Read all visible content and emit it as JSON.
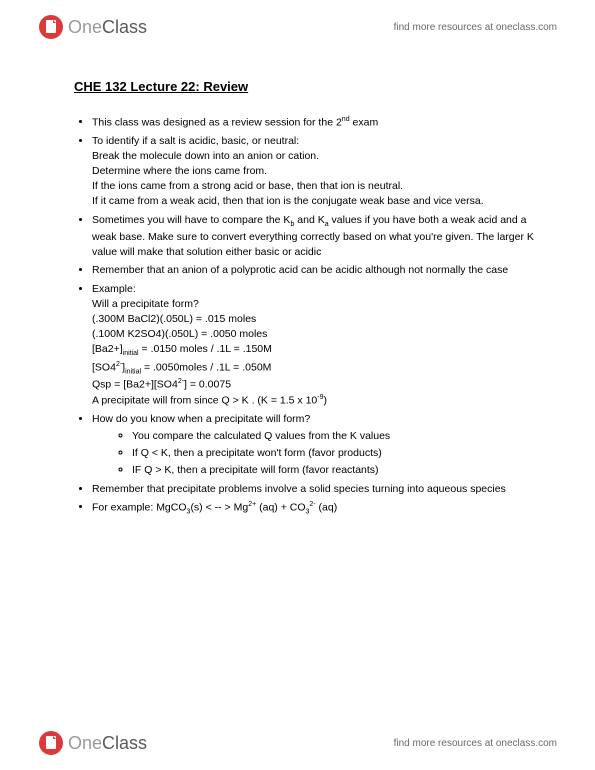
{
  "header": {
    "logo_one": "One",
    "logo_class": "Class",
    "find_more": "find more resources at oneclass.com",
    "logo_colors": {
      "one": "#9a9a9a",
      "class": "#5a5a5a",
      "icon_fill": "#d93b3b",
      "icon_page": "#ffffff"
    }
  },
  "doc": {
    "title": "CHE 132 Lecture 22: Review",
    "bullets": [
      {
        "lines": [
          "This class was designed as a review session for the 2",
          " exam"
        ],
        "sup_after_first": "nd"
      },
      {
        "lines": [
          "To identify if a salt is acidic, basic, or neutral:",
          "Break the molecule down into an anion or cation.",
          "Determine where the ions came from.",
          "If the ions came from a strong acid or base, then that ion is neutral.",
          "If it came from a weak acid, then that ion is the conjugate weak base and vice versa."
        ]
      },
      {
        "lines": [
          "Sometimes you will have to compare the K",
          " and K",
          " values if you have both a weak acid and a weak base. Make sure to convert everything correctly based on what you're given. The larger K value will make that solution either basic or acidic"
        ],
        "subs_inline": [
          "b",
          "a"
        ]
      },
      {
        "lines": [
          "Remember that an anion of a polyprotic acid can be acidic although not normally the case"
        ]
      },
      {
        "lines": [
          "Example:",
          "Will a precipitate form?",
          "(.300M BaCl2)(.050L) = .015 moles",
          "(.100M K2SO4)(.050L) = .0050 moles",
          "[Ba2+]__initial__ = .0150 moles / .1L = .150M",
          "[SO4__2-__]__initial__ = .0050moles / .1L = .050M",
          "Qsp = [Ba2+][SO4__2-__] = 0.0075",
          "A precipitate will from since Q > K . (K = 1.5 x 10__-9__)"
        ]
      },
      {
        "lines": [
          "How do you know when a precipitate will form?"
        ],
        "sub_items": [
          "You compare the calculated Q values from the K values",
          "If Q < K, then a precipitate won't form (favor products)",
          "IF Q > K, then a precipitate will form (favor reactants)"
        ]
      },
      {
        "lines": [
          "Remember that precipitate problems involve a solid species turning into aqueous species"
        ]
      },
      {
        "lines": [
          "For example: MgCO__3__(s) < -- > Mg__2+__ (aq) + CO__3____2-__ (aq)"
        ]
      }
    ]
  }
}
